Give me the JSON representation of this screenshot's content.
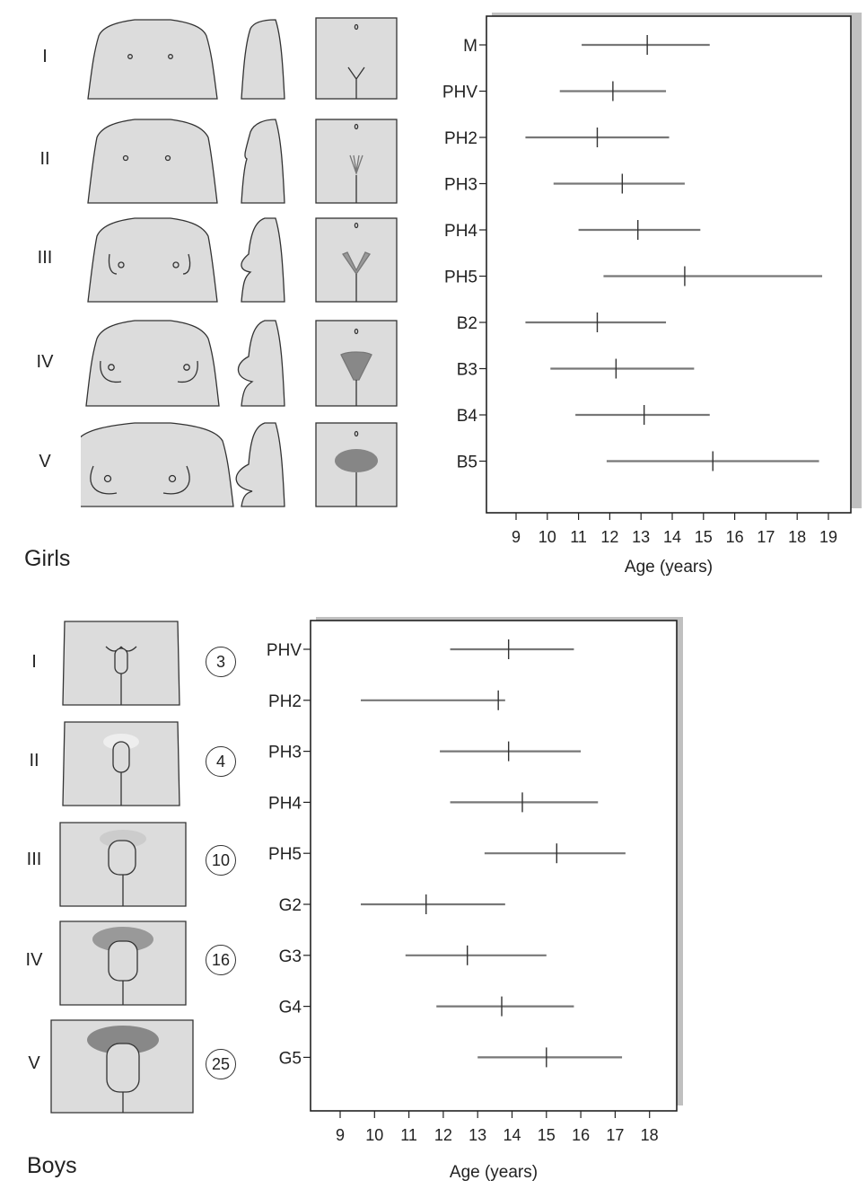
{
  "girls": {
    "label": "Girls",
    "stages": [
      "I",
      "II",
      "III",
      "IV",
      "V"
    ]
  },
  "boys": {
    "label": "Boys",
    "stages": [
      "I",
      "II",
      "III",
      "IV",
      "V"
    ],
    "testicular_volumes": [
      "3",
      "4",
      "10",
      "16",
      "25"
    ]
  },
  "colors": {
    "panel": "#dcdcdc",
    "range": "#777777",
    "axis": "#222222",
    "shadow": "#c0c0c0"
  },
  "chart_data": [
    {
      "type": "range",
      "xlabel": "Age (years)",
      "xlim": [
        8,
        19.5
      ],
      "xticks": [
        9,
        10,
        11,
        12,
        13,
        14,
        15,
        16,
        17,
        18,
        19
      ],
      "categories": [
        "M",
        "PHV",
        "PH2",
        "PH3",
        "PH4",
        "PH5",
        "B2",
        "B3",
        "B4",
        "B5"
      ],
      "ranges": [
        {
          "label": "M",
          "low": 11.1,
          "mean": 13.2,
          "high": 15.2
        },
        {
          "label": "PHV",
          "low": 10.4,
          "mean": 12.1,
          "high": 13.8
        },
        {
          "label": "PH2",
          "low": 9.3,
          "mean": 11.6,
          "high": 13.9
        },
        {
          "label": "PH3",
          "low": 10.2,
          "mean": 12.4,
          "high": 14.4
        },
        {
          "label": "PH4",
          "low": 11.0,
          "mean": 12.9,
          "high": 14.9
        },
        {
          "label": "PH5",
          "low": 11.8,
          "mean": 14.4,
          "high": 18.8
        },
        {
          "label": "B2",
          "low": 9.3,
          "mean": 11.6,
          "high": 13.8
        },
        {
          "label": "B3",
          "low": 10.1,
          "mean": 12.2,
          "high": 14.7
        },
        {
          "label": "B4",
          "low": 10.9,
          "mean": 13.1,
          "high": 15.2
        },
        {
          "label": "B5",
          "low": 11.9,
          "mean": 15.3,
          "high": 18.7
        }
      ]
    },
    {
      "type": "range",
      "xlabel": "Age (years)",
      "xlim": [
        8,
        18.8
      ],
      "xticks": [
        9,
        10,
        11,
        12,
        13,
        14,
        15,
        16,
        17,
        18
      ],
      "categories": [
        "PHV",
        "PH2",
        "PH3",
        "PH4",
        "PH5",
        "G2",
        "G3",
        "G4",
        "G5"
      ],
      "ranges": [
        {
          "label": "PHV",
          "low": 12.2,
          "mean": 13.9,
          "high": 15.8
        },
        {
          "label": "PH2",
          "low": 9.6,
          "mean": 13.6,
          "high": 13.8
        },
        {
          "label": "PH3",
          "low": 11.9,
          "mean": 13.9,
          "high": 16.0
        },
        {
          "label": "PH4",
          "low": 12.2,
          "mean": 14.3,
          "high": 16.5
        },
        {
          "label": "PH5",
          "low": 13.2,
          "mean": 15.3,
          "high": 17.3
        },
        {
          "label": "G2",
          "low": 9.6,
          "mean": 11.5,
          "high": 13.8
        },
        {
          "label": "G3",
          "low": 10.9,
          "mean": 12.7,
          "high": 15.0
        },
        {
          "label": "G4",
          "low": 11.8,
          "mean": 13.7,
          "high": 15.8
        },
        {
          "label": "G5",
          "low": 13.0,
          "mean": 15.0,
          "high": 17.2
        }
      ]
    }
  ]
}
